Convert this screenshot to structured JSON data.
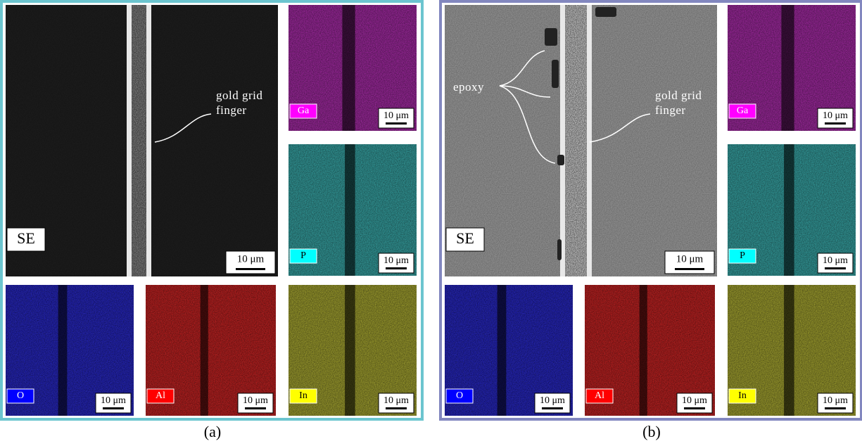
{
  "panels": [
    {
      "caption": "(a)",
      "se": {
        "label": "SE",
        "scale_bar": "10 μm",
        "annotations": [
          {
            "lines": [
              "gold grid",
              "finger"
            ]
          }
        ]
      },
      "maps": [
        {
          "element": "Ga",
          "scale_bar": "10 μm"
        },
        {
          "element": "P",
          "scale_bar": "10 μm"
        },
        {
          "element": "In",
          "scale_bar": "10 μm"
        },
        {
          "element": "O",
          "scale_bar": "10 μm"
        },
        {
          "element": "Al",
          "scale_bar": "10 μm"
        }
      ]
    },
    {
      "caption": "(b)",
      "se": {
        "label": "SE",
        "scale_bar": "10 μm",
        "annotations": [
          {
            "lines": [
              "epoxy"
            ]
          },
          {
            "lines": [
              "gold grid",
              "finger"
            ]
          }
        ]
      },
      "maps": [
        {
          "element": "Ga",
          "scale_bar": "10 μm"
        },
        {
          "element": "P",
          "scale_bar": "10 μm"
        },
        {
          "element": "In",
          "scale_bar": "10 μm"
        },
        {
          "element": "O",
          "scale_bar": "10 μm"
        },
        {
          "element": "Al",
          "scale_bar": "10 μm"
        }
      ]
    }
  ]
}
